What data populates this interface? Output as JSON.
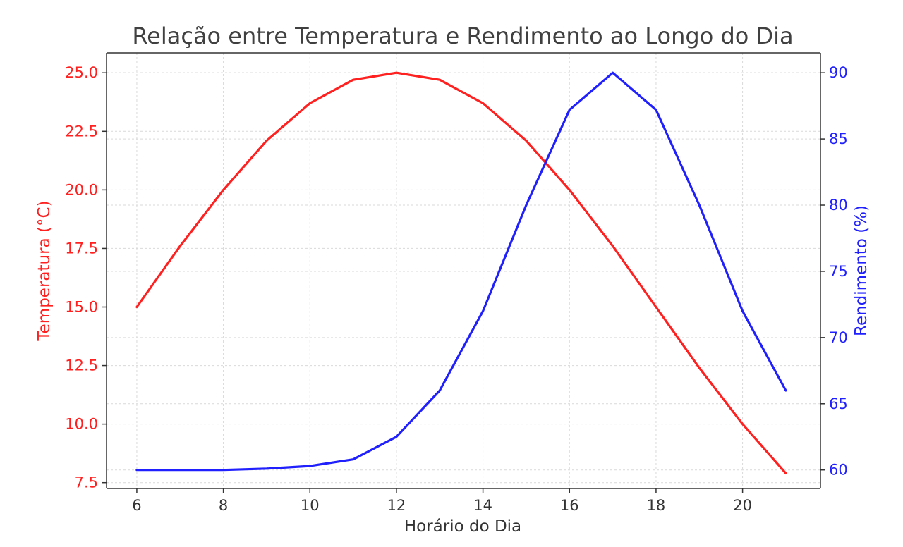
{
  "chart_data": {
    "type": "line",
    "title": "Relação entre Temperatura e Rendimento ao Longo do Dia",
    "xlabel": "Horário do Dia",
    "ylabel_left": "Temperatura (°C)",
    "ylabel_right": "Rendimento (%)",
    "x": [
      6,
      7,
      8,
      9,
      10,
      11,
      12,
      13,
      14,
      15,
      16,
      17,
      18,
      19,
      20,
      21
    ],
    "x_ticks": [
      "6",
      "8",
      "10",
      "12",
      "14",
      "16",
      "18",
      "20"
    ],
    "xlim": [
      5.3,
      21.8
    ],
    "y_left_ticks": [
      "7.5",
      "10.0",
      "12.5",
      "15.0",
      "17.5",
      "20.0",
      "22.5",
      "25.0"
    ],
    "ylim_left": [
      7.25,
      25.85
    ],
    "y_right_ticks": [
      "60",
      "65",
      "70",
      "75",
      "80",
      "85",
      "90"
    ],
    "ylim_right": [
      58.6,
      91.5
    ],
    "grid": true,
    "series": [
      {
        "name": "Temperatura (°C)",
        "axis": "left",
        "color": "#ff2020",
        "values": [
          15.0,
          17.6,
          20.0,
          22.1,
          23.7,
          24.7,
          25.0,
          24.7,
          23.7,
          22.1,
          20.0,
          17.6,
          15.0,
          12.4,
          10.0,
          7.9
        ]
      },
      {
        "name": "Rendimento (%)",
        "axis": "right",
        "color": "#2020ff",
        "values": [
          60.0,
          60.0,
          60.0,
          60.1,
          60.3,
          60.8,
          62.5,
          66.0,
          72.0,
          80.0,
          87.2,
          90.0,
          87.2,
          80.0,
          72.0,
          66.0
        ]
      }
    ]
  }
}
